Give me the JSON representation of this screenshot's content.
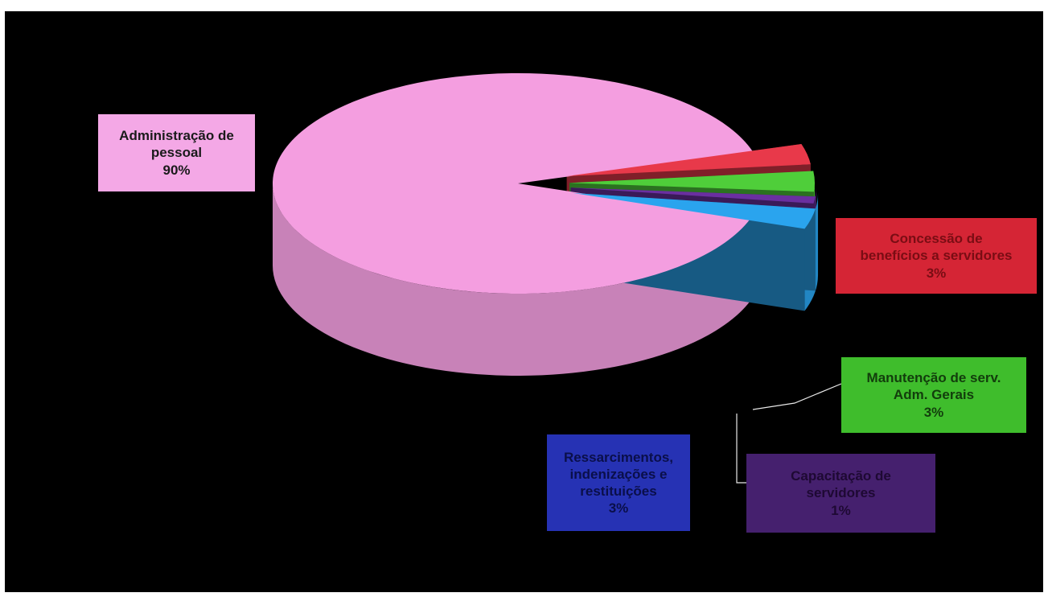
{
  "chart_data": {
    "type": "pie",
    "style": "3d-exploded",
    "slices": [
      {
        "label": "Administração de pessoal",
        "display_lines": [
          "Administração de",
          "pessoal"
        ],
        "value": 90,
        "value_label": "90%",
        "color": "#f49ee0",
        "label_bg": "#f4a8e6",
        "label_color": "#1a1a1a"
      },
      {
        "label": "Concessão de benefícios a servidores",
        "display_lines": [
          "Concessão de",
          "benefícios a servidores"
        ],
        "value": 3,
        "value_label": "3%",
        "color": "#e8394a",
        "label_bg": "#d52535",
        "label_color": "#7a0d14"
      },
      {
        "label": "Manutenção de serv. Adm. Gerais",
        "display_lines": [
          "Manutenção de serv.",
          "Adm. Gerais"
        ],
        "value": 3,
        "value_label": "3%",
        "color": "#4fce3a",
        "label_bg": "#3fbd2c",
        "label_color": "#123d0c"
      },
      {
        "label": "Capacitação de servidores",
        "display_lines": [
          "Capacitação de",
          "servidores"
        ],
        "value": 1,
        "value_label": "1%",
        "color": "#6a2fa0",
        "label_bg": "#45206e",
        "label_color": "#1e0933"
      },
      {
        "label": "Ressarcimentos, indenizações e restituições",
        "display_lines": [
          "Ressarcimentos,",
          "indenizações e",
          "restituições"
        ],
        "value": 3,
        "value_label": "3%",
        "color": "#2aa4ee",
        "label_bg": "#2632b4",
        "label_color": "#0a0f4a"
      }
    ],
    "legend": "none",
    "data_labels": "category name and percentage"
  }
}
